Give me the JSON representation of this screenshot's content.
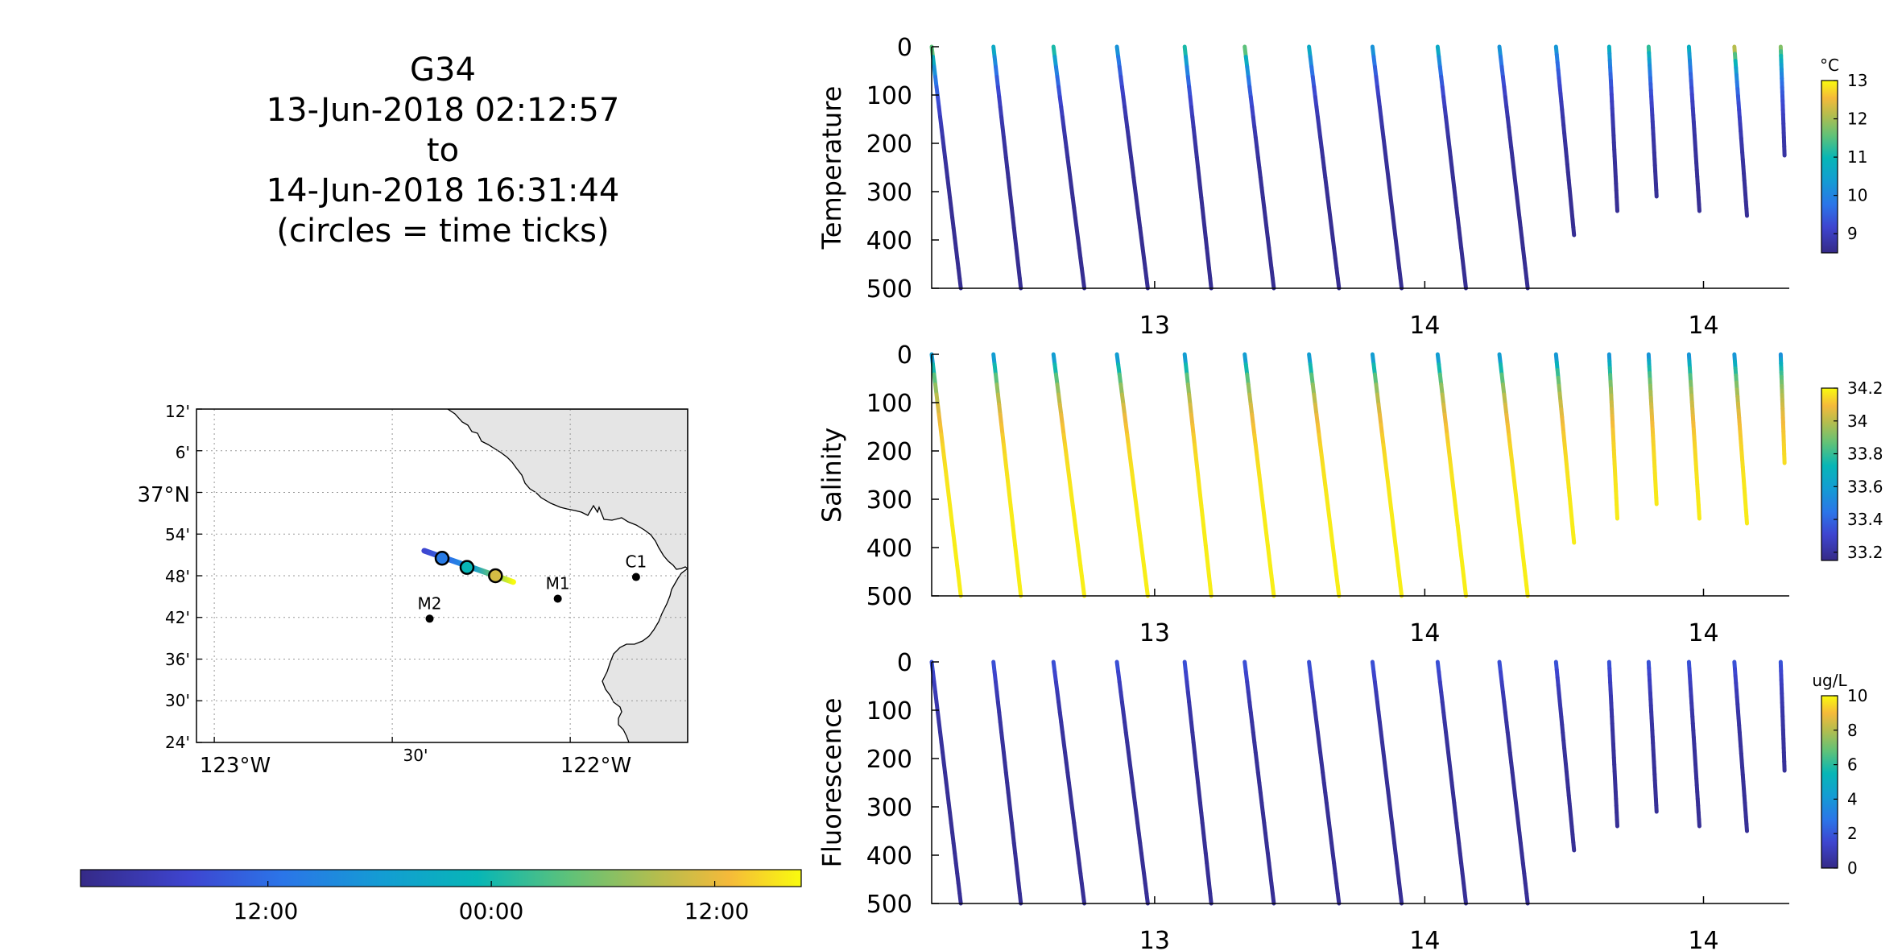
{
  "header": {
    "glider": "G34",
    "start": "13-Jun-2018 02:12:57",
    "to": "to",
    "end": "14-Jun-2018 16:31:44",
    "note": "(circles = time ticks)"
  },
  "map": {
    "lat_ticks": [
      "12'",
      "6'",
      "37°N",
      "54'",
      "48'",
      "42'",
      "36'",
      "30'",
      "24'"
    ],
    "lon_ticks": [
      "123°W",
      "30'",
      "122°W"
    ],
    "lat_range": [
      36.4,
      37.2
    ],
    "lon_range": [
      -123.05,
      -121.67
    ],
    "stations": [
      {
        "name": "C1",
        "lon": -121.815,
        "lat": 36.797
      },
      {
        "name": "M1",
        "lon": -122.035,
        "lat": 36.745
      },
      {
        "name": "M2",
        "lon": -122.395,
        "lat": 36.697
      }
    ],
    "track": {
      "start": {
        "lon": -122.41,
        "lat": 36.86
      },
      "end": {
        "lon": -122.16,
        "lat": 36.785
      }
    },
    "time_circles": [
      {
        "lon": -122.36,
        "lat": 36.842
      },
      {
        "lon": -122.29,
        "lat": 36.82
      },
      {
        "lon": -122.21,
        "lat": 36.8
      }
    ],
    "land_color": "#e5e5e5"
  },
  "time_colorbar": {
    "ticks": [
      "12:00",
      "00:00",
      "12:00"
    ],
    "tick_fractions": [
      0.26,
      0.57,
      0.88
    ]
  },
  "chart_data": [
    {
      "type": "scatter",
      "ylabel": "Temperature",
      "unit": "°C",
      "ylim": [
        0,
        500
      ],
      "y_ticks": [
        "0",
        "100",
        "200",
        "300",
        "400",
        "500"
      ],
      "x_ticks": [
        "13",
        "14",
        "14"
      ],
      "clim": [
        8.5,
        13
      ],
      "cb_ticks": [
        "13",
        "12",
        "11",
        "10",
        "9"
      ],
      "cb_tick_values": [
        13,
        12,
        11,
        10,
        9
      ],
      "profiles": {
        "surface": [
          12.0,
          11.0,
          11.5,
          10.5,
          11.5,
          12.0,
          11.0,
          10.5,
          11.0,
          10.5,
          10.5,
          11.0,
          11.5,
          11.0,
          12.5,
          12.0
        ],
        "deep": 8.6
      }
    },
    {
      "type": "scatter",
      "ylabel": "Salinity",
      "unit": "",
      "ylim": [
        0,
        500
      ],
      "y_ticks": [
        "0",
        "100",
        "200",
        "300",
        "400",
        "500"
      ],
      "x_ticks": [
        "13",
        "14",
        "14"
      ],
      "clim": [
        33.15,
        34.2
      ],
      "cb_ticks": [
        "34.2",
        "34",
        "33.8",
        "33.6",
        "33.4",
        "33.2"
      ],
      "cb_tick_values": [
        34.2,
        34,
        33.8,
        33.6,
        33.4,
        33.2
      ],
      "profiles": {
        "surface": 33.5,
        "deep": 34.18
      }
    },
    {
      "type": "scatter",
      "ylabel": "Fluorescence",
      "unit": "ug/L",
      "ylim": [
        0,
        500
      ],
      "y_ticks": [
        "0",
        "100",
        "200",
        "300",
        "400",
        "500"
      ],
      "x_ticks": [
        "13",
        "14",
        "14"
      ],
      "clim": [
        0,
        10
      ],
      "cb_ticks": [
        "10",
        "8",
        "6",
        "4",
        "2",
        "0"
      ],
      "cb_tick_values": [
        10,
        8,
        6,
        4,
        2,
        0
      ],
      "profiles": {
        "surface": 2.0,
        "deep": 0.3
      }
    }
  ],
  "dives": {
    "x_fraction_start": [
      0.0,
      0.072,
      0.142,
      0.216,
      0.295,
      0.365,
      0.44,
      0.514,
      0.59,
      0.662,
      0.728,
      0.79,
      0.836,
      0.883,
      0.936,
      0.99
    ],
    "x_fraction_end": [
      0.034,
      0.104,
      0.178,
      0.252,
      0.326,
      0.399,
      0.475,
      0.548,
      0.623,
      0.695,
      0.755,
      0.804,
      0.851,
      0.901,
      0.957,
      1.0
    ],
    "max_depth": [
      500,
      500,
      500,
      500,
      500,
      500,
      500,
      500,
      500,
      500,
      390,
      340,
      310,
      340,
      350,
      225
    ]
  }
}
